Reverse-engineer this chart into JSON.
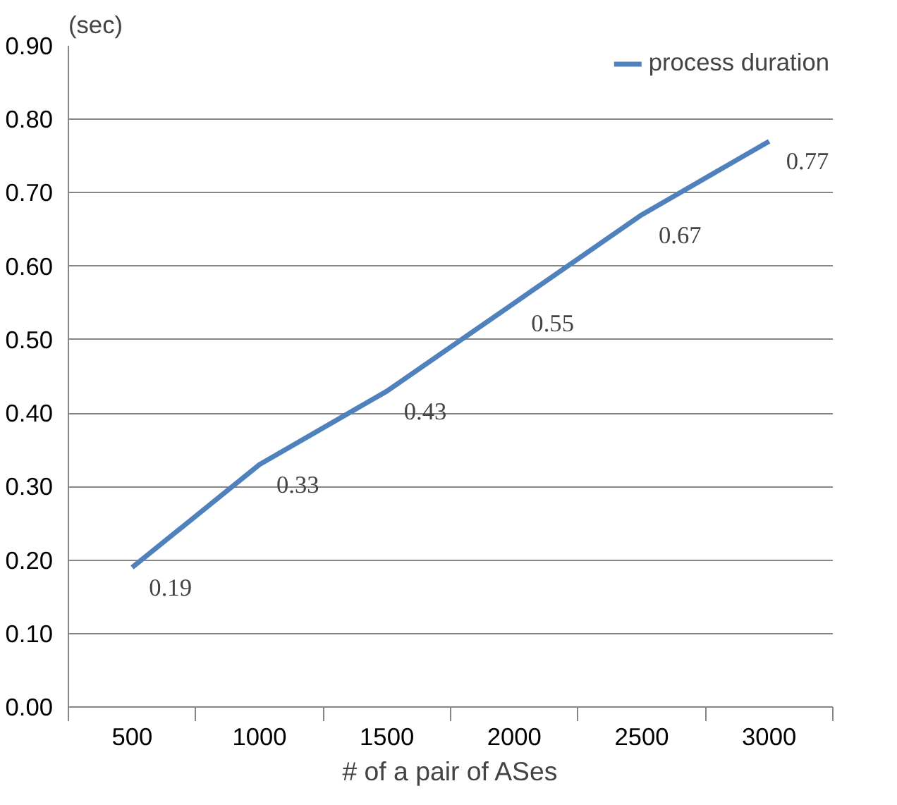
{
  "chart_data": {
    "type": "line",
    "ylabel": "(sec)",
    "xlabel": "# of a pair of ASes",
    "categories": [
      "500",
      "1000",
      "1500",
      "2000",
      "2500",
      "3000"
    ],
    "series": [
      {
        "name": "process duration",
        "color": "#4f81bd",
        "values": [
          0.19,
          0.33,
          0.43,
          0.55,
          0.67,
          0.77
        ]
      }
    ],
    "ylim": [
      0,
      0.9
    ],
    "yticks": [
      {
        "value": 0,
        "label": "0.00"
      },
      {
        "value": 0.1,
        "label": "0.10"
      },
      {
        "value": 0.2,
        "label": "0.20"
      },
      {
        "value": 0.3,
        "label": "0.30"
      },
      {
        "value": 0.4,
        "label": "0.40"
      },
      {
        "value": 0.5,
        "label": "0.50"
      },
      {
        "value": 0.6,
        "label": "0.60"
      },
      {
        "value": 0.7,
        "label": "0.70"
      },
      {
        "value": 0.8,
        "label": "0.80"
      },
      {
        "value": 0.9,
        "label": "0.90"
      }
    ],
    "grid": "y",
    "legend": "top right",
    "data_labels": true,
    "line_style": "solid",
    "marker": "none"
  }
}
